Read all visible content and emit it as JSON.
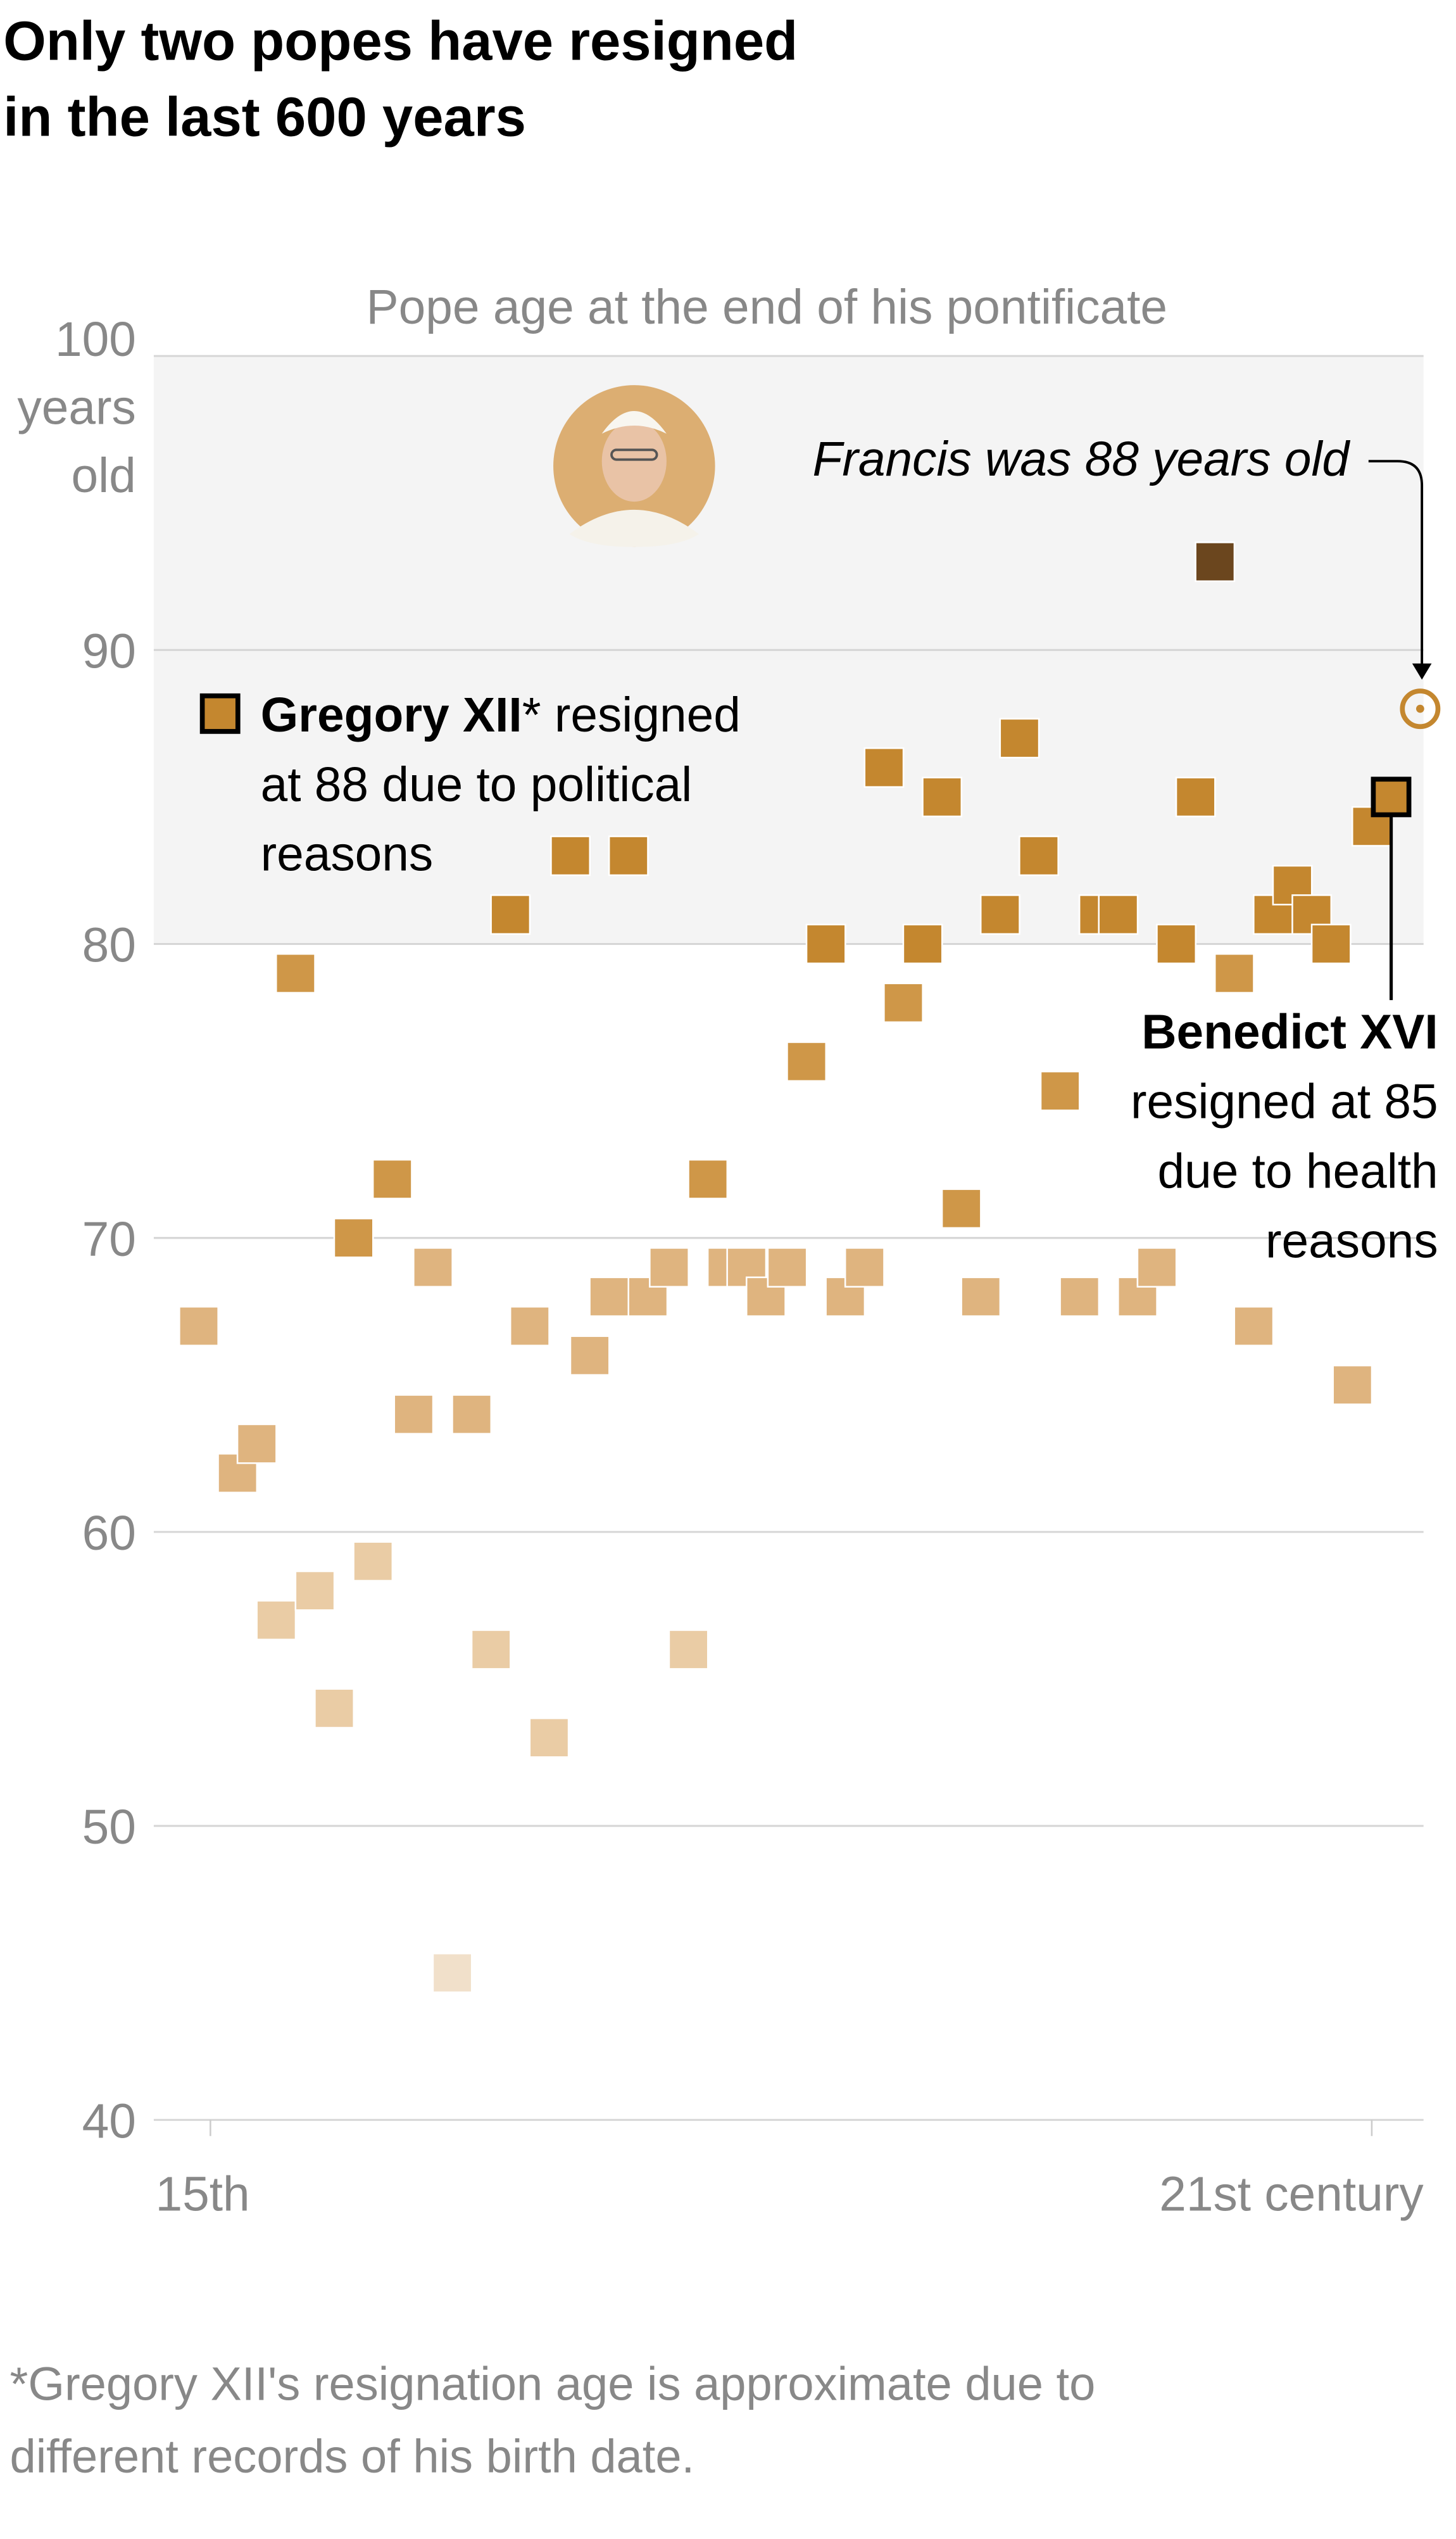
{
  "title_lines": [
    "Only two popes have resigned",
    "in the last 600 years"
  ],
  "chart_data": {
    "type": "scatter",
    "title": "Pope age at the end of his pontificate",
    "ylabel_lines": [
      "100",
      "years",
      "old"
    ],
    "ylim": [
      40,
      100
    ],
    "yticks": [
      40,
      50,
      60,
      70,
      80,
      90
    ],
    "xlim": [
      1400,
      2000
    ],
    "xtick_labels": [
      "15th",
      "21st century"
    ],
    "xtick_values": [
      1400,
      2000
    ],
    "grid": true,
    "colors": {
      "age90": "#6b461e",
      "age80": "#c4872f",
      "age70": "#cf9748",
      "age60": "#dfb47f",
      "age50": "#eacca5",
      "age40": "#f1e0ca",
      "highlight": "#c4872f",
      "shade": "#f4f4f4"
    },
    "points": [
      {
        "x": 1394,
        "y": 67
      },
      {
        "x": 1414,
        "y": 62
      },
      {
        "x": 1424,
        "y": 63
      },
      {
        "x": 1434,
        "y": 57
      },
      {
        "x": 1444,
        "y": 79
      },
      {
        "x": 1454,
        "y": 58
      },
      {
        "x": 1464,
        "y": 54
      },
      {
        "x": 1474,
        "y": 70
      },
      {
        "x": 1484,
        "y": 59
      },
      {
        "x": 1494,
        "y": 72
      },
      {
        "x": 1505,
        "y": 64
      },
      {
        "x": 1515,
        "y": 69
      },
      {
        "x": 1525,
        "y": 45
      },
      {
        "x": 1535,
        "y": 64
      },
      {
        "x": 1545,
        "y": 56
      },
      {
        "x": 1555,
        "y": 81
      },
      {
        "x": 1565,
        "y": 67
      },
      {
        "x": 1575,
        "y": 53
      },
      {
        "x": 1586,
        "y": 83
      },
      {
        "x": 1596,
        "y": 66
      },
      {
        "x": 1606,
        "y": 68
      },
      {
        "x": 1616,
        "y": 83
      },
      {
        "x": 1626,
        "y": 68
      },
      {
        "x": 1637,
        "y": 69
      },
      {
        "x": 1647,
        "y": 56
      },
      {
        "x": 1657,
        "y": 72
      },
      {
        "x": 1667,
        "y": 69
      },
      {
        "x": 1677,
        "y": 69
      },
      {
        "x": 1687,
        "y": 68
      },
      {
        "x": 1698,
        "y": 69
      },
      {
        "x": 1708,
        "y": 76
      },
      {
        "x": 1718,
        "y": 80
      },
      {
        "x": 1728,
        "y": 68
      },
      {
        "x": 1738,
        "y": 69
      },
      {
        "x": 1748,
        "y": 86
      },
      {
        "x": 1758,
        "y": 78
      },
      {
        "x": 1768,
        "y": 80
      },
      {
        "x": 1778,
        "y": 85
      },
      {
        "x": 1788,
        "y": 71
      },
      {
        "x": 1798,
        "y": 68
      },
      {
        "x": 1808,
        "y": 81
      },
      {
        "x": 1818,
        "y": 87
      },
      {
        "x": 1828,
        "y": 83
      },
      {
        "x": 1839,
        "y": 75
      },
      {
        "x": 1849,
        "y": 68
      },
      {
        "x": 1859,
        "y": 81
      },
      {
        "x": 1869,
        "y": 81
      },
      {
        "x": 1879,
        "y": 68
      },
      {
        "x": 1889,
        "y": 69
      },
      {
        "x": 1899,
        "y": 80
      },
      {
        "x": 1909,
        "y": 85
      },
      {
        "x": 1919,
        "y": 93
      },
      {
        "x": 1929,
        "y": 79
      },
      {
        "x": 1939,
        "y": 67
      },
      {
        "x": 1949,
        "y": 81
      },
      {
        "x": 1959,
        "y": 82
      },
      {
        "x": 1969,
        "y": 81
      },
      {
        "x": 1979,
        "y": 80
      },
      {
        "x": 1990,
        "y": 65
      },
      {
        "x": 2000,
        "y": 84
      }
    ],
    "benedict": {
      "x": 2010,
      "y": 85
    },
    "francis": {
      "x": 2025,
      "y": 88
    }
  },
  "annotations": {
    "francis": "Francis was 88 years old",
    "gregory_name": "Gregory XII",
    "gregory_lines": [
      "* resigned",
      "at 88 due to political",
      "reasons"
    ],
    "benedict_name": "Benedict XVI",
    "benedict_lines": [
      "resigned at 85",
      "due to health",
      "reasons"
    ]
  },
  "footnote_lines": [
    "*Gregory XII's resignation age is approximate due to",
    "different records of his birth date."
  ]
}
